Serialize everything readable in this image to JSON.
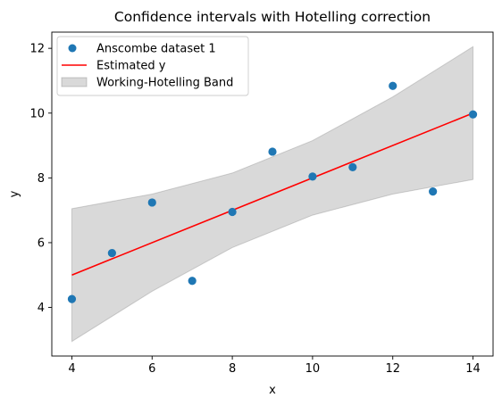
{
  "chart_data": {
    "type": "scatter",
    "title": "Confidence intervals with Hotelling correction",
    "xlabel": "x",
    "ylabel": "y",
    "xlim": [
      3.5,
      14.5
    ],
    "ylim": [
      2.5,
      12.5
    ],
    "xticks": [
      4,
      6,
      8,
      10,
      12,
      14
    ],
    "yticks": [
      4,
      6,
      8,
      10,
      12
    ],
    "grid": false,
    "legend_position": "upper-left",
    "scatter": {
      "name": "Anscombe dataset 1",
      "color": "#1f77b4",
      "x": [
        4,
        5,
        6,
        7,
        8,
        9,
        10,
        11,
        12,
        13,
        14
      ],
      "y": [
        4.26,
        5.68,
        7.24,
        4.82,
        6.95,
        8.81,
        8.04,
        8.33,
        10.84,
        7.58,
        9.96
      ]
    },
    "line": {
      "name": "Estimated y",
      "color": "#ff0000",
      "x": [
        4,
        14
      ],
      "y": [
        5.0,
        10.0
      ]
    },
    "band": {
      "name": "Working-Hotelling Band",
      "color": "#808080",
      "x": [
        4,
        6,
        8,
        10,
        12,
        14
      ],
      "lower": [
        2.95,
        4.5,
        5.85,
        6.85,
        7.5,
        7.95
      ],
      "upper": [
        7.05,
        7.5,
        8.15,
        9.15,
        10.5,
        12.05
      ]
    }
  }
}
